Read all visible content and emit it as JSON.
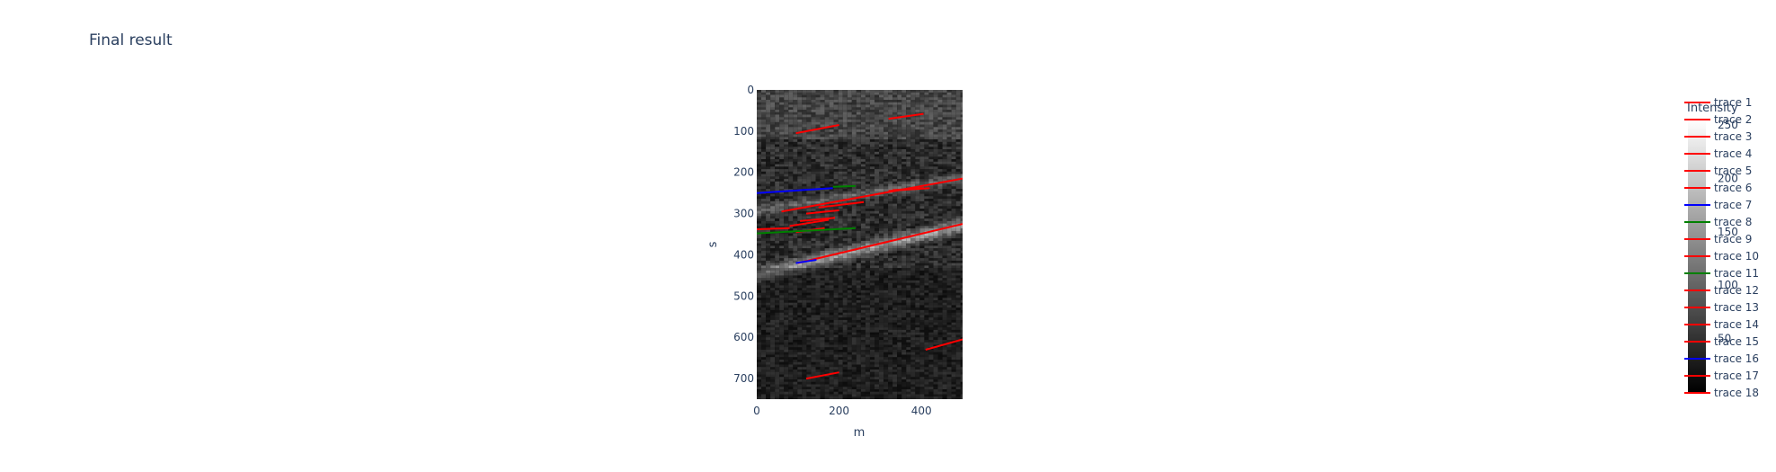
{
  "chart_data": {
    "type": "heatmap",
    "title": "Final result",
    "xlabel": "m",
    "ylabel": "s",
    "xlim": [
      0,
      500
    ],
    "ylim": [
      750,
      0
    ],
    "x_ticks": [
      0,
      200,
      400
    ],
    "y_ticks": [
      0,
      100,
      200,
      300,
      400,
      500,
      600,
      700
    ],
    "colorscale": "greys",
    "colorbar": {
      "title": "Intensity",
      "ticks": [
        50,
        100,
        150,
        200,
        250
      ]
    },
    "series": [
      {
        "name": "trace 1",
        "color": "#ff0000",
        "x": [
          95,
          200
        ],
        "y": [
          105,
          85
        ]
      },
      {
        "name": "trace 2",
        "color": "#ff0000",
        "x": [
          320,
          405
        ],
        "y": [
          70,
          58
        ]
      },
      {
        "name": "trace 3",
        "color": "#ff0000",
        "x": [
          60,
          500
        ],
        "y": [
          295,
          215
        ]
      },
      {
        "name": "trace 4",
        "color": "#ff0000",
        "x": [
          80,
          175
        ],
        "y": [
          330,
          315
        ]
      },
      {
        "name": "trace 5",
        "color": "#ff0000",
        "x": [
          95,
          165
        ],
        "y": [
          345,
          335
        ]
      },
      {
        "name": "trace 6",
        "color": "#ff0000",
        "x": [
          100,
          500
        ],
        "y": [
          420,
          325
        ]
      },
      {
        "name": "trace 7",
        "color": "#0000ff",
        "x": [
          0,
          185
        ],
        "y": [
          250,
          238
        ]
      },
      {
        "name": "trace 8",
        "color": "#008000",
        "x": [
          0,
          240
        ],
        "y": [
          348,
          335
        ]
      },
      {
        "name": "trace 9",
        "color": "#ff0000",
        "x": [
          105,
          190
        ],
        "y": [
          318,
          310
        ]
      },
      {
        "name": "trace 10",
        "color": "#ff0000",
        "x": [
          120,
          200
        ],
        "y": [
          300,
          292
        ]
      },
      {
        "name": "trace 11",
        "color": "#008000",
        "x": [
          185,
          240
        ],
        "y": [
          235,
          233
        ]
      },
      {
        "name": "trace 12",
        "color": "#ff0000",
        "x": [
          0,
          80
        ],
        "y": [
          338,
          335
        ]
      },
      {
        "name": "trace 13",
        "color": "#ff0000",
        "x": [
          320,
          420
        ],
        "y": [
          245,
          238
        ]
      },
      {
        "name": "trace 14",
        "color": "#ff0000",
        "x": [
          150,
          260
        ],
        "y": [
          285,
          272
        ]
      },
      {
        "name": "trace 15",
        "color": "#ff0000",
        "x": [
          410,
          500
        ],
        "y": [
          630,
          605
        ]
      },
      {
        "name": "trace 16",
        "color": "#0000ff",
        "x": [
          95,
          145
        ],
        "y": [
          420,
          412
        ]
      },
      {
        "name": "trace 17",
        "color": "#ff0000",
        "x": [
          120,
          200
        ],
        "y": [
          700,
          685
        ]
      },
      {
        "name": "trace 18",
        "color": "#ff0000",
        "x": [
          330,
          405
        ],
        "y": [
          243,
          238
        ]
      }
    ]
  }
}
